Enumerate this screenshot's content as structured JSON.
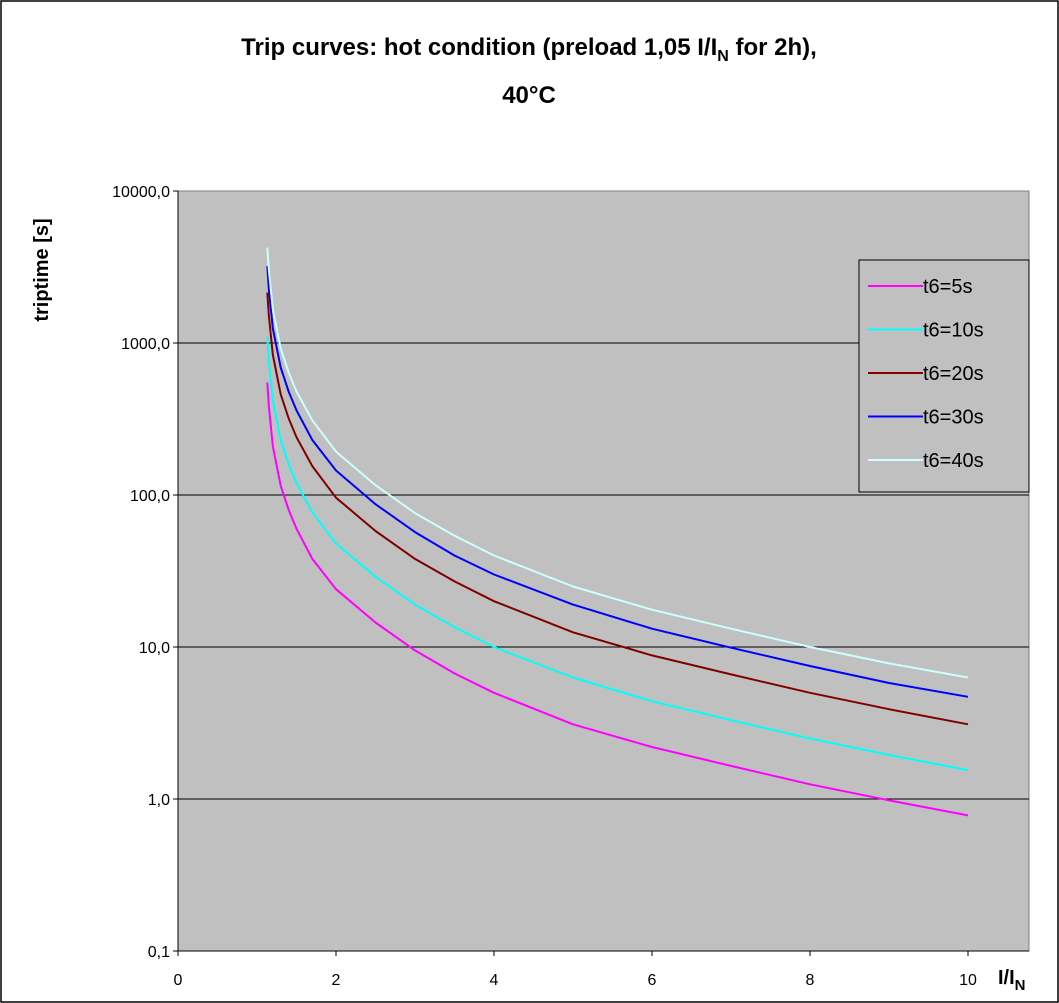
{
  "chart_data": {
    "type": "line",
    "title_line1_main": "Trip curves: hot condition (preload 1,05 I/I",
    "title_line1_sub": "N",
    "title_line1_tail": " for 2h),",
    "title_line2": "40°C",
    "ylabel": "triptime [s]",
    "xlabel_main": "I/I",
    "xlabel_sub": "N",
    "xlim": [
      0,
      10
    ],
    "ylim": [
      0.1,
      10000
    ],
    "yscale": "log",
    "grid": "horizontal",
    "legend_position": "right",
    "plot_background": "#c0c0c0",
    "x_ticks": [
      {
        "value": 0,
        "label": "0"
      },
      {
        "value": 2,
        "label": "2"
      },
      {
        "value": 4,
        "label": "4"
      },
      {
        "value": 6,
        "label": "6"
      },
      {
        "value": 8,
        "label": "8"
      },
      {
        "value": 10,
        "label": "10"
      }
    ],
    "y_ticks": [
      {
        "value": 0.1,
        "label": "0,1"
      },
      {
        "value": 1,
        "label": "1,0"
      },
      {
        "value": 10,
        "label": "10,0"
      },
      {
        "value": 100,
        "label": "100,0"
      },
      {
        "value": 1000,
        "label": "1000,0"
      },
      {
        "value": 10000,
        "label": "10000,0"
      }
    ],
    "x": [
      1.13,
      1.15,
      1.2,
      1.3,
      1.4,
      1.5,
      1.7,
      2.0,
      2.5,
      3.0,
      3.5,
      4.0,
      5.0,
      6.0,
      7.0,
      8.0,
      9.0,
      10.0
    ],
    "series": [
      {
        "name": "t6=5s",
        "color": "#ff00ff",
        "values": [
          550,
          380,
          210,
          115,
          80,
          60,
          38,
          24,
          14.5,
          9.5,
          6.7,
          5.0,
          3.1,
          2.2,
          1.65,
          1.25,
          0.98,
          0.78
        ]
      },
      {
        "name": "t6=10s",
        "color": "#00ffff",
        "values": [
          1100,
          760,
          420,
          230,
          160,
          120,
          77,
          48,
          29,
          19,
          13.5,
          10.0,
          6.3,
          4.4,
          3.3,
          2.5,
          1.95,
          1.55
        ]
      },
      {
        "name": "t6=20s",
        "color": "#800000",
        "values": [
          2150,
          1500,
          840,
          460,
          320,
          240,
          155,
          96,
          58,
          38,
          27,
          20,
          12.5,
          8.8,
          6.6,
          5.0,
          3.9,
          3.1
        ]
      },
      {
        "name": "t6=30s",
        "color": "#0000ff",
        "values": [
          3200,
          2250,
          1250,
          690,
          480,
          360,
          230,
          145,
          87,
          57,
          40,
          30,
          19,
          13.2,
          9.9,
          7.5,
          5.8,
          4.7
        ]
      },
      {
        "name": "t6=40s",
        "color": "#ccffff",
        "values": [
          4250,
          3000,
          1670,
          920,
          640,
          480,
          310,
          193,
          116,
          76,
          54,
          40,
          25,
          17.6,
          13.2,
          10.0,
          7.8,
          6.3
        ]
      }
    ]
  }
}
